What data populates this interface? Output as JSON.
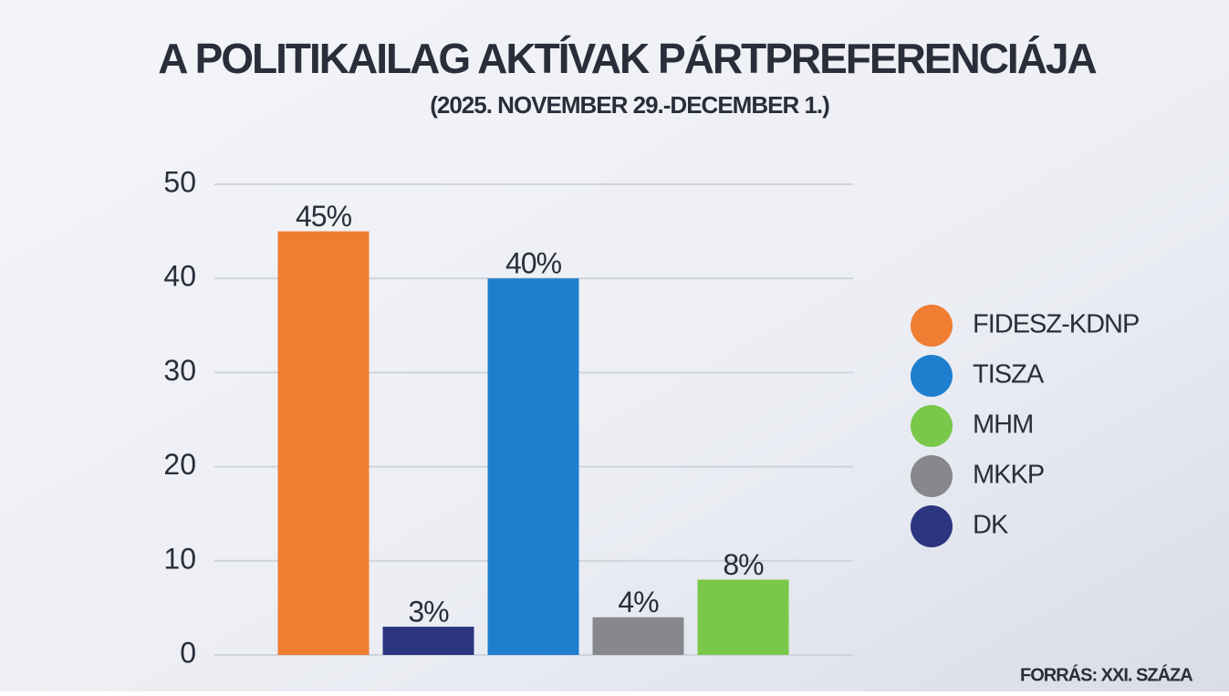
{
  "chart_data": {
    "type": "bar",
    "title": "A POLITIKAILAG AKTÍVAK PÁRTPREFERENCIÁJA",
    "subtitle": "(2025. NOVEMBER 29.-DECEMBER 1.)",
    "source": "FORRÁS: XXI. SZÁZA",
    "categories": [
      null,
      null,
      null,
      null,
      null
    ],
    "series": [
      {
        "name": "FIDESZ-KDNP",
        "color": "#ef7d32",
        "values": [
          45,
          null,
          null,
          null,
          null
        ],
        "value_labels": [
          "45%",
          null,
          null,
          null,
          null
        ]
      },
      {
        "name": "TISZA",
        "color": "#1f7fcf",
        "values": [
          null,
          null,
          40,
          null,
          null
        ],
        "value_labels": [
          null,
          null,
          "40%",
          null,
          null
        ]
      },
      {
        "name": "MHM",
        "color": "#79c84a",
        "values": [
          null,
          null,
          null,
          null,
          8
        ],
        "value_labels": [
          null,
          null,
          null,
          null,
          "8%"
        ]
      },
      {
        "name": "MKKP",
        "color": "#86888d",
        "values": [
          null,
          null,
          null,
          4,
          null
        ],
        "value_labels": [
          null,
          null,
          null,
          "4%",
          null
        ]
      },
      {
        "name": "DK",
        "color": "#2b3580",
        "values": [
          null,
          3,
          null,
          null,
          null
        ],
        "value_labels": [
          null,
          "3%",
          null,
          null,
          null
        ]
      }
    ],
    "ylim": [
      0,
      50
    ],
    "yticks": [
      0,
      10,
      20,
      30,
      40,
      50
    ],
    "grid": true,
    "legend": "right"
  }
}
